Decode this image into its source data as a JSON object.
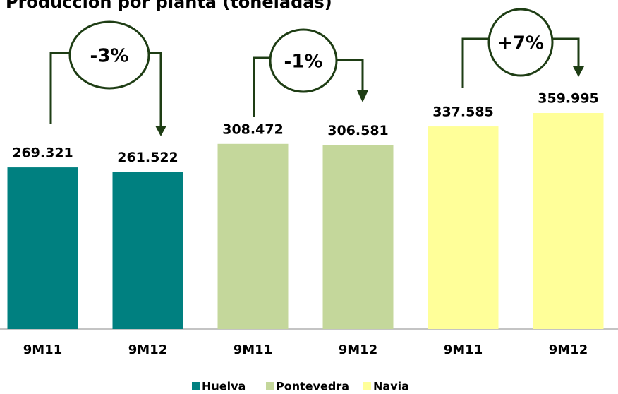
{
  "chart_data": {
    "type": "bar",
    "title": "Producción por planta (toneladas)",
    "categories": [
      "9M11",
      "9M12",
      "9M11",
      "9M12",
      "9M11",
      "9M12"
    ],
    "series": [
      {
        "name": "Huelva",
        "color": "#008080",
        "values": [
          269321,
          261522,
          null,
          null,
          null,
          null
        ],
        "value_labels": [
          "269.321",
          "261.522",
          null,
          null,
          null,
          null
        ]
      },
      {
        "name": "Pontevedra",
        "color": "#c4d79b",
        "values": [
          null,
          null,
          308472,
          306581,
          null,
          null
        ],
        "value_labels": [
          null,
          null,
          "308.472",
          "306.581",
          null,
          null
        ]
      },
      {
        "name": "Navia",
        "color": "#ffff99",
        "values": [
          null,
          null,
          null,
          null,
          337585,
          359995
        ],
        "value_labels": [
          null,
          null,
          null,
          null,
          "337.585",
          "359.995"
        ]
      }
    ],
    "annotations": [
      "-3%",
      "-1%",
      "+7%"
    ],
    "ylim": [
      0,
      400000
    ],
    "legend": "bottom"
  }
}
